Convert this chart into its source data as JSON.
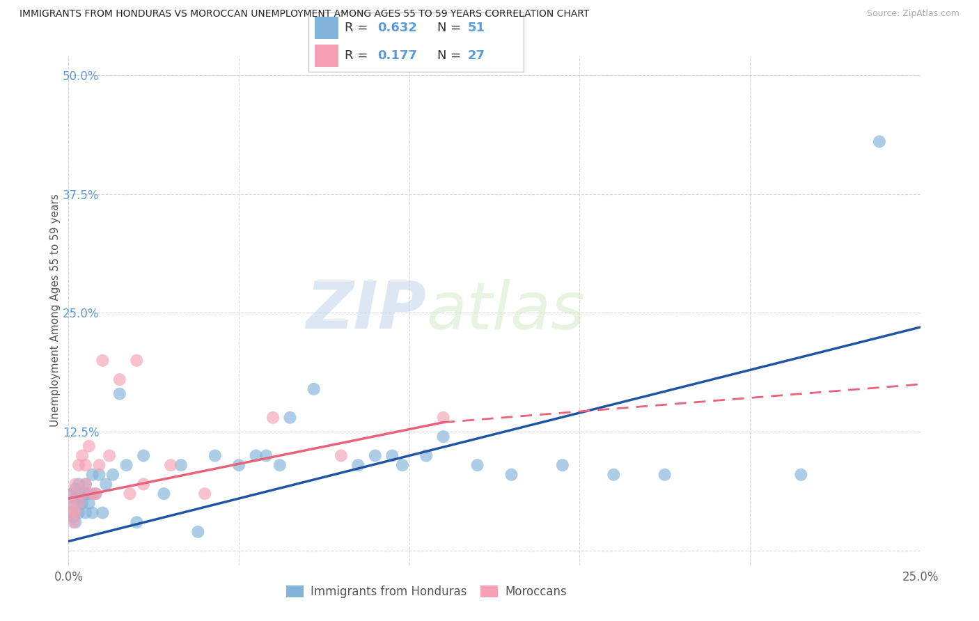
{
  "title": "IMMIGRANTS FROM HONDURAS VS MOROCCAN UNEMPLOYMENT AMONG AGES 55 TO 59 YEARS CORRELATION CHART",
  "source": "Source: ZipAtlas.com",
  "xlabel_label": "Immigrants from Honduras",
  "xlabel_label2": "Moroccans",
  "ylabel": "Unemployment Among Ages 55 to 59 years",
  "xlim": [
    0.0,
    0.25
  ],
  "ylim": [
    -0.015,
    0.52
  ],
  "yticks": [
    0.0,
    0.125,
    0.25,
    0.375,
    0.5
  ],
  "ytick_labels": [
    "",
    "12.5%",
    "25.0%",
    "37.5%",
    "50.0%"
  ],
  "xticks": [
    0.0,
    0.05,
    0.1,
    0.15,
    0.2,
    0.25
  ],
  "xtick_labels": [
    "0.0%",
    "",
    "",
    "",
    "",
    "25.0%"
  ],
  "blue_R": 0.632,
  "blue_N": 51,
  "pink_R": 0.177,
  "pink_N": 27,
  "blue_color": "#82b3d9",
  "pink_color": "#f5a0b5",
  "blue_line_color": "#2055a4",
  "pink_line_color": "#e8637a",
  "watermark_zip": "ZIP",
  "watermark_atlas": "atlas",
  "blue_points_x": [
    0.0005,
    0.001,
    0.001,
    0.0015,
    0.002,
    0.002,
    0.002,
    0.003,
    0.003,
    0.003,
    0.004,
    0.004,
    0.005,
    0.005,
    0.005,
    0.006,
    0.006,
    0.007,
    0.007,
    0.008,
    0.009,
    0.01,
    0.011,
    0.013,
    0.015,
    0.017,
    0.02,
    0.022,
    0.028,
    0.033,
    0.038,
    0.043,
    0.05,
    0.055,
    0.058,
    0.062,
    0.065,
    0.072,
    0.085,
    0.09,
    0.095,
    0.098,
    0.105,
    0.11,
    0.12,
    0.13,
    0.145,
    0.16,
    0.175,
    0.215,
    0.238
  ],
  "blue_points_y": [
    0.05,
    0.04,
    0.06,
    0.035,
    0.055,
    0.03,
    0.065,
    0.05,
    0.04,
    0.07,
    0.06,
    0.05,
    0.06,
    0.04,
    0.07,
    0.06,
    0.05,
    0.04,
    0.08,
    0.06,
    0.08,
    0.04,
    0.07,
    0.08,
    0.165,
    0.09,
    0.03,
    0.1,
    0.06,
    0.09,
    0.02,
    0.1,
    0.09,
    0.1,
    0.1,
    0.09,
    0.14,
    0.17,
    0.09,
    0.1,
    0.1,
    0.09,
    0.1,
    0.12,
    0.09,
    0.08,
    0.09,
    0.08,
    0.08,
    0.08,
    0.43
  ],
  "pink_points_x": [
    0.0005,
    0.001,
    0.001,
    0.0015,
    0.002,
    0.002,
    0.003,
    0.003,
    0.004,
    0.004,
    0.005,
    0.005,
    0.006,
    0.007,
    0.008,
    0.009,
    0.01,
    0.012,
    0.015,
    0.018,
    0.02,
    0.022,
    0.03,
    0.04,
    0.06,
    0.08,
    0.11
  ],
  "pink_points_y": [
    0.05,
    0.04,
    0.06,
    0.03,
    0.07,
    0.04,
    0.09,
    0.05,
    0.1,
    0.06,
    0.09,
    0.07,
    0.11,
    0.06,
    0.06,
    0.09,
    0.2,
    0.1,
    0.18,
    0.06,
    0.2,
    0.07,
    0.09,
    0.06,
    0.14,
    0.1,
    0.14
  ],
  "blue_line_x": [
    0.0,
    0.25
  ],
  "blue_line_y": [
    0.01,
    0.235
  ],
  "pink_line_x": [
    0.0,
    0.11
  ],
  "pink_line_y": [
    0.055,
    0.135
  ]
}
